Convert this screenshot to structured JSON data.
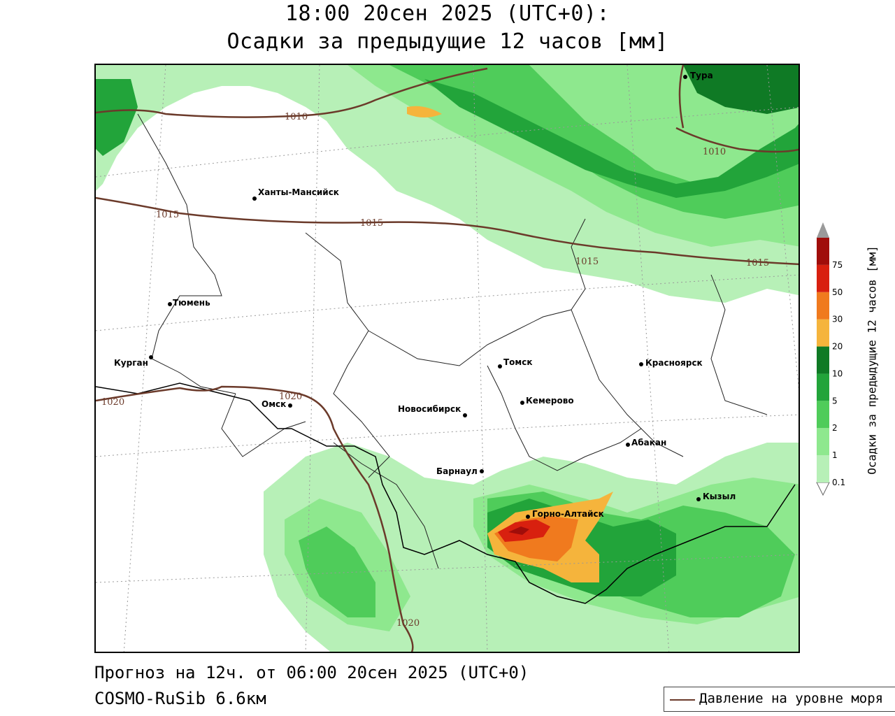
{
  "title": {
    "line1": "18:00 20сен 2025 (UTC+0):",
    "line2": "Осадки за предыдущие 12 часов [мм]"
  },
  "footer": {
    "forecast": "Прогноз на 12ч. от 06:00 20сен 2025 (UTC+0)",
    "model": "COSMO-RuSib 6.6км"
  },
  "legend": {
    "pressure_label": "Давление на уровне моря",
    "pressure_color": "#6b3a2a"
  },
  "colorbar": {
    "title": "Осадки за предыдущие 12 часов [мм]",
    "levels": [
      "0.1",
      "1",
      "2",
      "5",
      "10",
      "20",
      "30",
      "50",
      "75"
    ],
    "colors": [
      "#b7f0b7",
      "#8ee88e",
      "#4fcc5a",
      "#22a43a",
      "#0f7a25",
      "#f5b43c",
      "#f07a1e",
      "#d8200f",
      "#a00d0a",
      "#9a9a9a"
    ]
  },
  "cities": [
    {
      "name": "Тура"
    },
    {
      "name": "Ханты-Мансийск"
    },
    {
      "name": "Тюмень"
    },
    {
      "name": "Курган"
    },
    {
      "name": "Омск"
    },
    {
      "name": "Новосибирск"
    },
    {
      "name": "Томск"
    },
    {
      "name": "Кемерово"
    },
    {
      "name": "Красноярск"
    },
    {
      "name": "Барнаул"
    },
    {
      "name": "Абакан"
    },
    {
      "name": "Горно-Алтайск"
    },
    {
      "name": "Кызыл"
    }
  ],
  "isobars": [
    "1010",
    "1010",
    "1015",
    "1015",
    "1015",
    "1015",
    "1020",
    "1020",
    "1020"
  ]
}
